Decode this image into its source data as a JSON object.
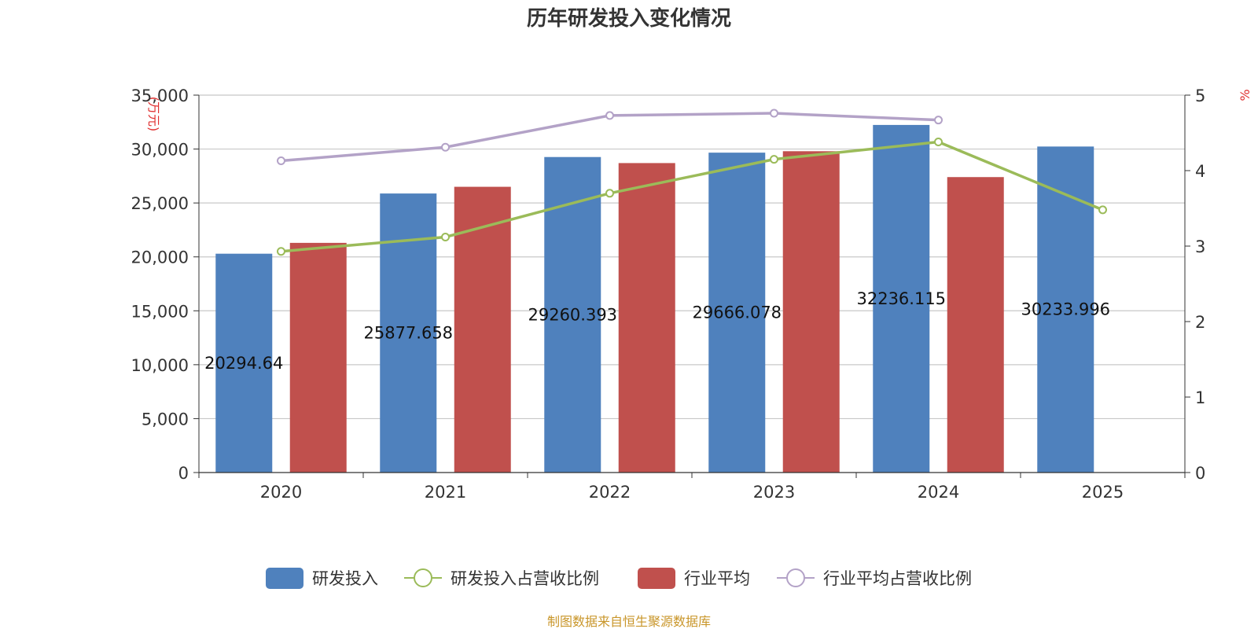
{
  "chart_data": {
    "type": "bar",
    "title": "历年研发投入变化情况",
    "categories": [
      "2020",
      "2021",
      "2022",
      "2023",
      "2024",
      "2025"
    ],
    "left_axis": {
      "unit_label": "(万元)",
      "range": [
        0,
        35000
      ],
      "ticks": [
        "0",
        "5,000",
        "10,000",
        "15,000",
        "20,000",
        "25,000",
        "30,000",
        "35,000"
      ]
    },
    "right_axis": {
      "unit_label": "%",
      "range": [
        0,
        5
      ],
      "ticks": [
        "0",
        "1",
        "2",
        "3",
        "4",
        "5"
      ]
    },
    "series": [
      {
        "name": "研发投入",
        "kind": "bar",
        "axis": "left",
        "color": "#4f81bd",
        "values": [
          20294.64,
          25877.658,
          29260.393,
          29666.078,
          32236.115,
          30233.996
        ],
        "labels": [
          "20294.64",
          "25877.658",
          "29260.393",
          "29666.078",
          "32236.115",
          "30233.996"
        ]
      },
      {
        "name": "研发投入占营收比例",
        "kind": "line",
        "axis": "right",
        "color": "#9bbb59",
        "values": [
          2.93,
          3.12,
          3.7,
          4.15,
          4.38,
          3.48
        ]
      },
      {
        "name": "行业平均",
        "kind": "bar",
        "axis": "left",
        "color": "#c0504d",
        "values": [
          21300,
          26500,
          28700,
          29800,
          27400,
          null
        ]
      },
      {
        "name": "行业平均占营收比例",
        "kind": "line",
        "axis": "right",
        "color": "#b3a2c7",
        "values": [
          4.13,
          4.31,
          4.73,
          4.76,
          4.67,
          null
        ]
      }
    ],
    "legend_position": "bottom",
    "grid": true
  },
  "footer": {
    "source": "制图数据来自恒生聚源数据库",
    "source_color": "#c9962a"
  }
}
